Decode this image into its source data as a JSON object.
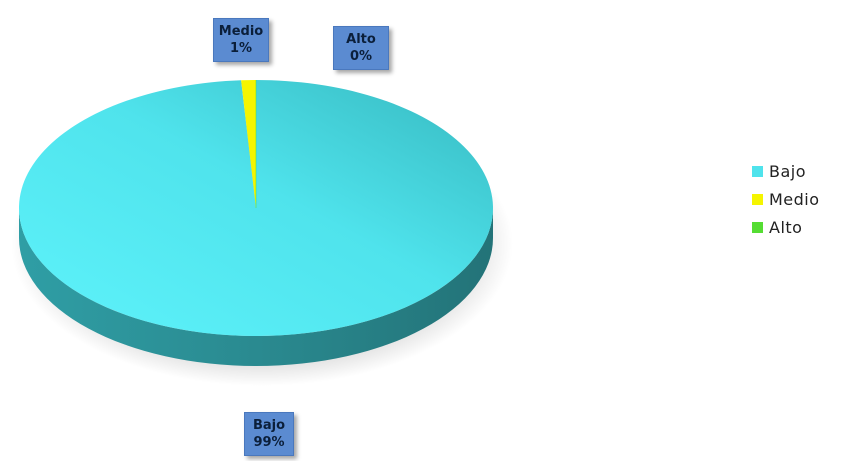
{
  "chart_data": {
    "type": "pie",
    "title": "",
    "categories": [
      "Bajo",
      "Medio",
      "Alto"
    ],
    "values": [
      99,
      1,
      0
    ],
    "value_labels": [
      "99%",
      "1%",
      "0%"
    ],
    "colors": [
      "#4fe3ec",
      "#f5f500",
      "#55dd33"
    ],
    "legend_position": "right",
    "style": "3d"
  }
}
